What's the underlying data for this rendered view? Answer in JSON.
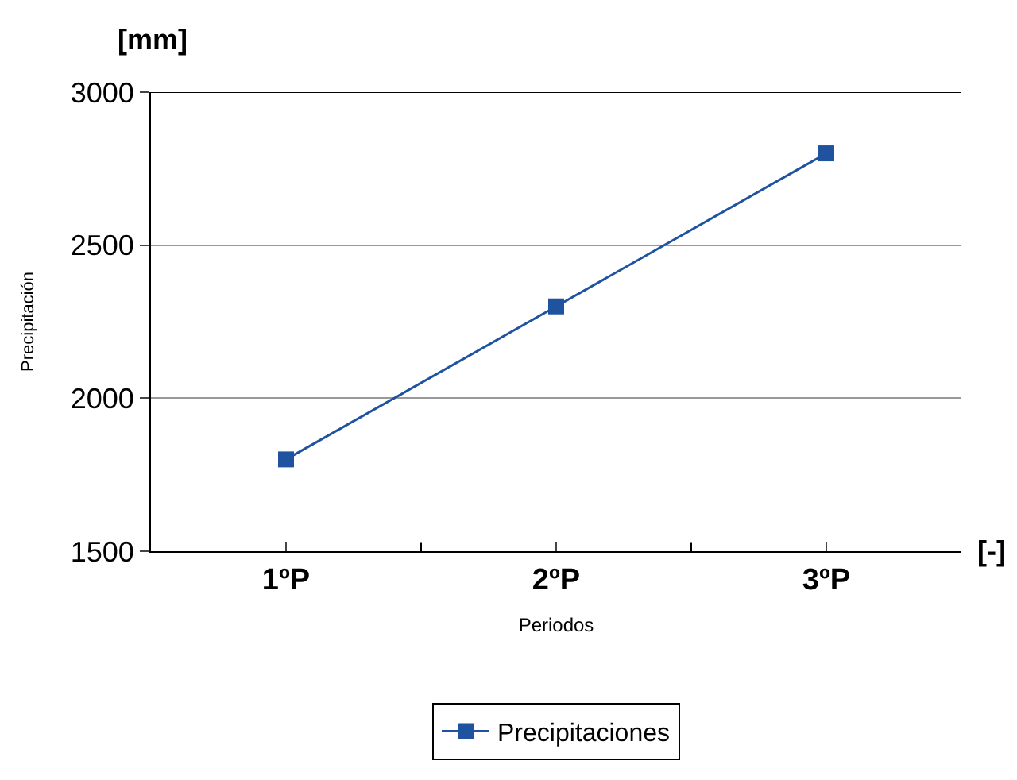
{
  "chart_data": {
    "type": "line",
    "xlabel": "Periodos",
    "ylabel": "Precipitación",
    "categories": [
      "1ºP",
      "2ºP",
      "3ºP"
    ],
    "series": [
      {
        "name": "Precipitaciones",
        "color": "#1f53a0",
        "values": [
          1800,
          2300,
          2800
        ]
      }
    ],
    "ylim": [
      1500,
      3000
    ],
    "yticks": [
      1500,
      2000,
      2500,
      3000
    ],
    "grid": "y",
    "legend": "bottom",
    "marker": "square",
    "line_style": "solid",
    "annotations": [
      "[mm]",
      "[-]"
    ]
  }
}
